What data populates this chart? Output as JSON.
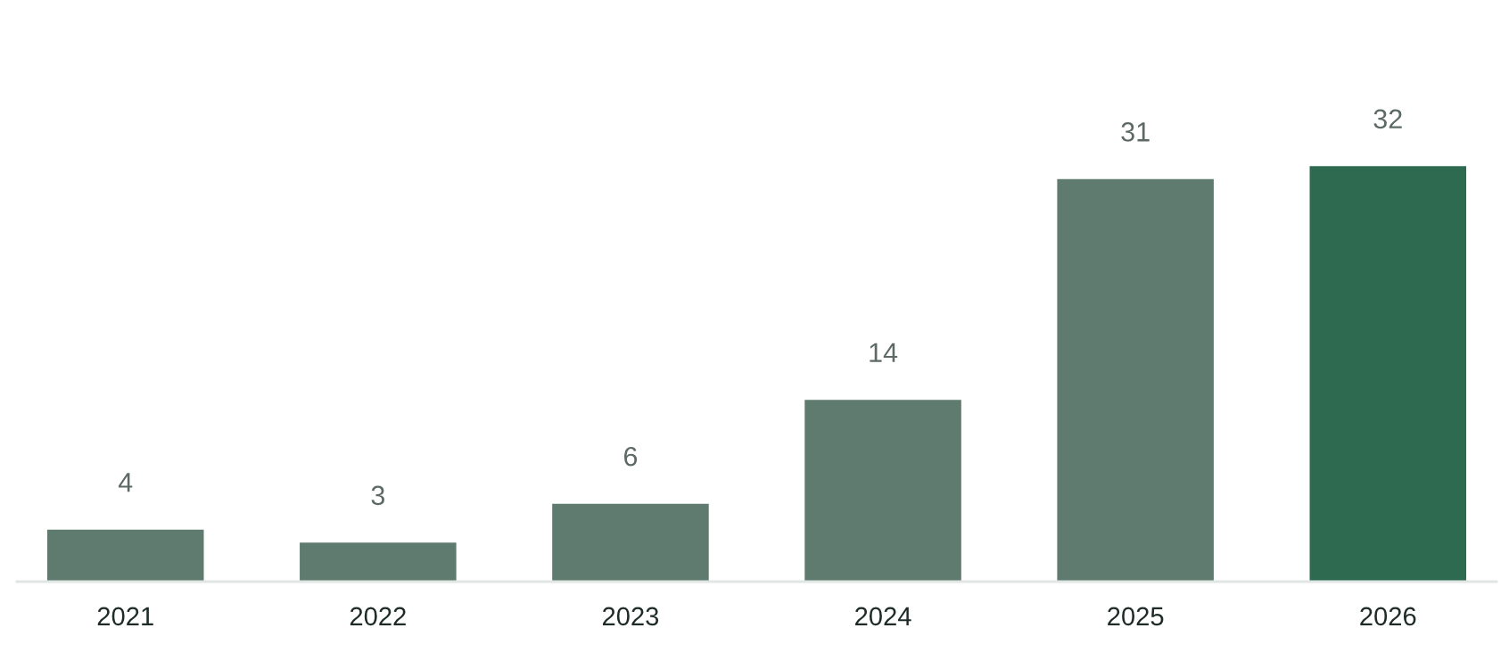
{
  "chart_data": {
    "type": "bar",
    "categories": [
      "2021",
      "2022",
      "2023",
      "2024",
      "2025",
      "2026"
    ],
    "values": [
      4,
      3,
      6,
      14,
      31,
      32
    ],
    "colors": [
      "#5f7a6f",
      "#5f7a6f",
      "#5f7a6f",
      "#5f7a6f",
      "#5f7a6f",
      "#2e6a50"
    ],
    "data_labels": true,
    "tick_labels": "x"
  }
}
